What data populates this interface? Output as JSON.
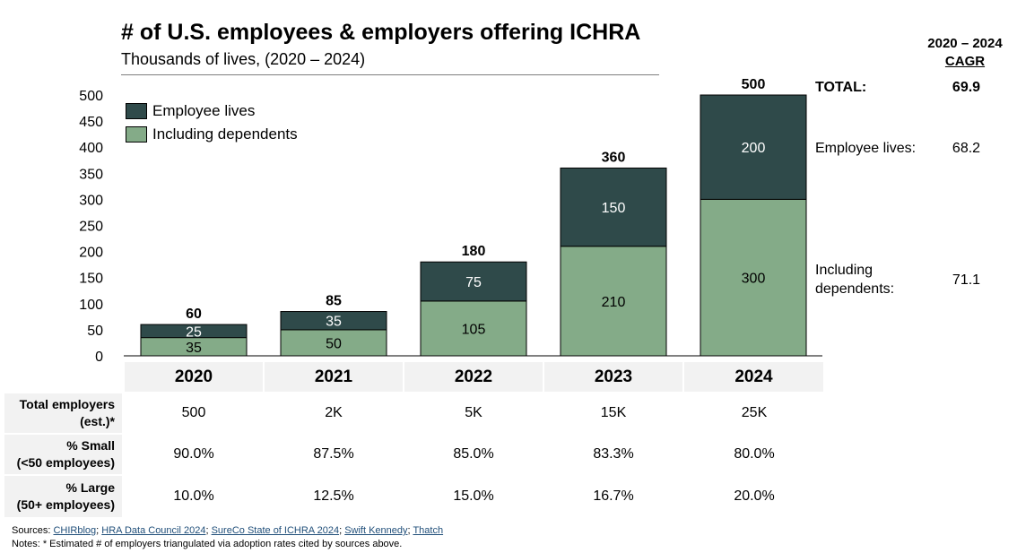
{
  "title": "# of U.S. employees & employers offering ICHRA",
  "subtitle": "Thousands of lives, (2020 – 2024)",
  "colors": {
    "employee": "#2f4a4a",
    "dependents": "#84ab88",
    "table_bg": "#f2f2f2",
    "link": "#1f4e79"
  },
  "chart_data": {
    "type": "bar",
    "stacked": true,
    "categories": [
      "2020",
      "2021",
      "2022",
      "2023",
      "2024"
    ],
    "series": [
      {
        "name": "Including dependents",
        "values": [
          35,
          50,
          105,
          210,
          300
        ]
      },
      {
        "name": "Employee lives",
        "values": [
          25,
          35,
          75,
          150,
          200
        ]
      }
    ],
    "totals": [
      60,
      85,
      180,
      360,
      500
    ],
    "total_labels": [
      "60",
      "85",
      "180",
      "360",
      "500"
    ],
    "ylim": [
      0,
      500
    ],
    "yticks": [
      "0",
      "50",
      "100",
      "150",
      "200",
      "250",
      "300",
      "350",
      "400",
      "450",
      "500"
    ],
    "legend": {
      "placement": "top-left",
      "entries": [
        "Employee lives",
        "Including dependents"
      ]
    },
    "grid": false
  },
  "cagr": {
    "header_line1": "2020 – 2024",
    "header_line2": "CAGR",
    "total_label": "TOTAL:",
    "total_value": "69.9",
    "employee_label": "Employee lives:",
    "employee_value": "68.2",
    "dependents_label_line1": "Including",
    "dependents_label_line2": "dependents:",
    "dependents_value": "71.1"
  },
  "table": {
    "years": [
      "2020",
      "2021",
      "2022",
      "2023",
      "2024"
    ],
    "rows": [
      {
        "label_line1": "Total employers",
        "label_line2": "(est.)*",
        "values": [
          "500",
          "2K",
          "5K",
          "15K",
          "25K"
        ]
      },
      {
        "label_line1": "% Small",
        "label_line2": "(<50 employees)",
        "values": [
          "90.0%",
          "87.5%",
          "85.0%",
          "83.3%",
          "80.0%"
        ]
      },
      {
        "label_line1": "% Large",
        "label_line2": "(50+ employees)",
        "values": [
          "10.0%",
          "12.5%",
          "15.0%",
          "16.7%",
          "20.0%"
        ]
      }
    ]
  },
  "sources": {
    "prefix": "Sources: ",
    "links": [
      "CHIRblog",
      "HRA Data Council 2024",
      "SureCo State of ICHRA 2024",
      "Swift Kennedy",
      "Thatch"
    ],
    "separator": "; "
  },
  "notes": "Notes: * Estimated # of employers triangulated via adoption rates cited by sources above."
}
